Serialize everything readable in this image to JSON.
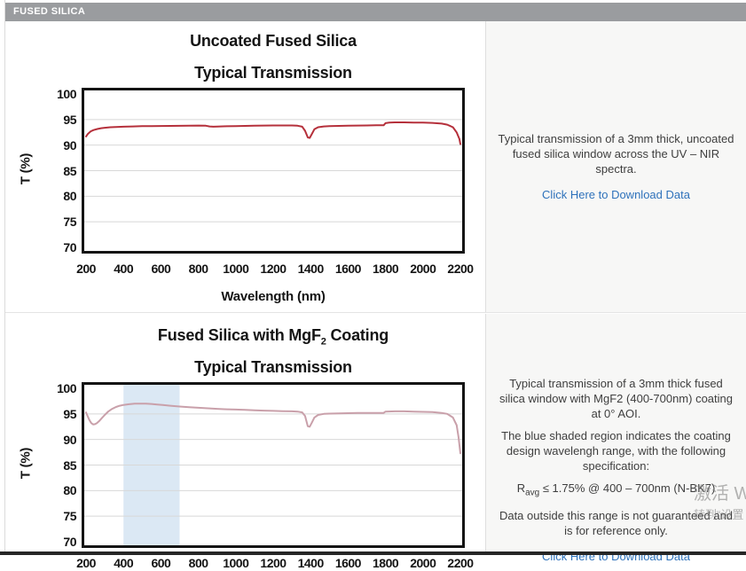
{
  "header": {
    "title": "FUSED SILICA"
  },
  "colors": {
    "header_bg": "#9a9c9f",
    "link": "#2e72bb",
    "chart1_line": "#b5303b",
    "chart2_line": "#c9a0aa",
    "shaded_region": "#dbe8f4",
    "gridline": "#d8d8d8",
    "panel_bg": "#f7f7f6",
    "plot_border": "#141414",
    "bottom_bar": "#262626"
  },
  "sections": [
    {
      "panel": {
        "text": "Typical transmission of a 3mm thick, uncoated fused silica window across the UV – NIR spectra.",
        "link_label": "Click Here to Download Data"
      }
    },
    {
      "panel": {
        "text1": "Typical transmission of a 3mm thick fused silica window with MgF2 (400-700nm) coating at 0° AOI.",
        "text2": "The blue shaded region indicates the coating design wavelengh range, with the following specification:",
        "spec": {
          "base": "R",
          "sub": "avg",
          "rest": " ≤ 1.75% @ 400 – 700nm (N-BK7)"
        },
        "text3": "Data outside this range is not guaranteed and is for reference only.",
        "link_label": "Click Here to Download Data"
      }
    }
  ],
  "watermark": {
    "line1": "激活 W",
    "line2": "转到“设置"
  },
  "chart_data": [
    {
      "type": "line",
      "title": {
        "pre": "Uncoated Fused Silica",
        "sub": "",
        "post": "",
        "line2": "Typical Transmission"
      },
      "xlabel": "Wavelength (nm)",
      "ylabel": "T (%)",
      "xlim": [
        200,
        2200
      ],
      "ylim": [
        70,
        100
      ],
      "xticks": [
        200,
        400,
        600,
        800,
        1000,
        1200,
        1400,
        1600,
        1800,
        2000,
        2200
      ],
      "yticks": [
        70,
        75,
        80,
        85,
        90,
        95,
        100
      ],
      "grid": true,
      "grid_color": "#d8d8d8",
      "legend": "none",
      "line_color": "#b5303b",
      "series": [
        {
          "name": "Uncoated Fused Silica Typical Transmission",
          "points": [
            [
              200,
              91.7
            ],
            [
              210,
              92.2
            ],
            [
              225,
              92.7
            ],
            [
              240,
              92.95
            ],
            [
              260,
              93.15
            ],
            [
              280,
              93.3
            ],
            [
              300,
              93.4
            ],
            [
              330,
              93.5
            ],
            [
              360,
              93.55
            ],
            [
              400,
              93.6
            ],
            [
              450,
              93.65
            ],
            [
              500,
              93.7
            ],
            [
              550,
              93.72
            ],
            [
              600,
              93.74
            ],
            [
              650,
              93.76
            ],
            [
              700,
              93.78
            ],
            [
              750,
              93.8
            ],
            [
              800,
              93.82
            ],
            [
              840,
              93.8
            ],
            [
              860,
              93.65
            ],
            [
              880,
              93.6
            ],
            [
              900,
              93.62
            ],
            [
              950,
              93.68
            ],
            [
              1000,
              93.72
            ],
            [
              1050,
              93.76
            ],
            [
              1100,
              93.8
            ],
            [
              1150,
              93.82
            ],
            [
              1200,
              93.84
            ],
            [
              1250,
              93.85
            ],
            [
              1300,
              93.85
            ],
            [
              1330,
              93.8
            ],
            [
              1355,
              93.6
            ],
            [
              1370,
              92.8
            ],
            [
              1385,
              91.5
            ],
            [
              1395,
              91.4
            ],
            [
              1405,
              92.1
            ],
            [
              1420,
              93.1
            ],
            [
              1440,
              93.5
            ],
            [
              1470,
              93.65
            ],
            [
              1500,
              93.7
            ],
            [
              1550,
              93.75
            ],
            [
              1600,
              93.8
            ],
            [
              1650,
              93.82
            ],
            [
              1700,
              93.85
            ],
            [
              1750,
              93.87
            ],
            [
              1790,
              93.88
            ],
            [
              1800,
              94.3
            ],
            [
              1820,
              94.4
            ],
            [
              1850,
              94.45
            ],
            [
              1900,
              94.45
            ],
            [
              1950,
              94.4
            ],
            [
              2000,
              94.42
            ],
            [
              2050,
              94.35
            ],
            [
              2100,
              94.2
            ],
            [
              2130,
              94.0
            ],
            [
              2160,
              93.5
            ],
            [
              2180,
              92.5
            ],
            [
              2195,
              91.2
            ],
            [
              2200,
              90.2
            ]
          ]
        }
      ]
    },
    {
      "type": "line",
      "title": {
        "pre": "Fused Silica with MgF",
        "sub": "2",
        "post": " Coating",
        "line2": "Typical Transmission"
      },
      "xlabel": "",
      "ylabel": "T (%)",
      "xlim": [
        200,
        2200
      ],
      "ylim": [
        70,
        100
      ],
      "xticks": [
        200,
        400,
        600,
        800,
        1000,
        1200,
        1400,
        1600,
        1800,
        2000,
        2200
      ],
      "yticks": [
        70,
        75,
        80,
        85,
        90,
        95,
        100
      ],
      "grid": true,
      "grid_color": "#d8d8d8",
      "legend": "none",
      "line_color": "#c9a0aa",
      "shaded_region": {
        "x0": 400,
        "x1": 700,
        "color": "#dbe8f4"
      },
      "series": [
        {
          "name": "Fused Silica with MgF2 Coating Typical Transmission",
          "points": [
            [
              200,
              95.3
            ],
            [
              208,
              94.6
            ],
            [
              218,
              93.8
            ],
            [
              228,
              93.2
            ],
            [
              238,
              92.95
            ],
            [
              248,
              93.0
            ],
            [
              258,
              93.2
            ],
            [
              270,
              93.6
            ],
            [
              285,
              94.2
            ],
            [
              300,
              94.8
            ],
            [
              320,
              95.5
            ],
            [
              340,
              96.0
            ],
            [
              360,
              96.35
            ],
            [
              380,
              96.6
            ],
            [
              400,
              96.75
            ],
            [
              430,
              96.9
            ],
            [
              460,
              97.0
            ],
            [
              490,
              97.02
            ],
            [
              520,
              97.0
            ],
            [
              550,
              96.95
            ],
            [
              580,
              96.85
            ],
            [
              610,
              96.75
            ],
            [
              650,
              96.6
            ],
            [
              700,
              96.45
            ],
            [
              750,
              96.3
            ],
            [
              800,
              96.2
            ],
            [
              850,
              96.1
            ],
            [
              900,
              96.0
            ],
            [
              950,
              95.9
            ],
            [
              1000,
              95.85
            ],
            [
              1050,
              95.78
            ],
            [
              1100,
              95.7
            ],
            [
              1150,
              95.65
            ],
            [
              1200,
              95.6
            ],
            [
              1250,
              95.55
            ],
            [
              1300,
              95.5
            ],
            [
              1330,
              95.45
            ],
            [
              1355,
              95.3
            ],
            [
              1370,
              94.6
            ],
            [
              1385,
              92.6
            ],
            [
              1395,
              92.5
            ],
            [
              1405,
              93.2
            ],
            [
              1420,
              94.3
            ],
            [
              1440,
              94.8
            ],
            [
              1470,
              95.0
            ],
            [
              1500,
              95.05
            ],
            [
              1550,
              95.1
            ],
            [
              1600,
              95.15
            ],
            [
              1650,
              95.18
            ],
            [
              1700,
              95.2
            ],
            [
              1750,
              95.2
            ],
            [
              1790,
              95.2
            ],
            [
              1800,
              95.45
            ],
            [
              1850,
              95.5
            ],
            [
              1900,
              95.5
            ],
            [
              1950,
              95.45
            ],
            [
              2000,
              95.4
            ],
            [
              2050,
              95.35
            ],
            [
              2100,
              95.2
            ],
            [
              2130,
              95.0
            ],
            [
              2160,
              94.3
            ],
            [
              2180,
              92.8
            ],
            [
              2190,
              90.5
            ],
            [
              2200,
              87.3
            ]
          ]
        }
      ]
    }
  ]
}
